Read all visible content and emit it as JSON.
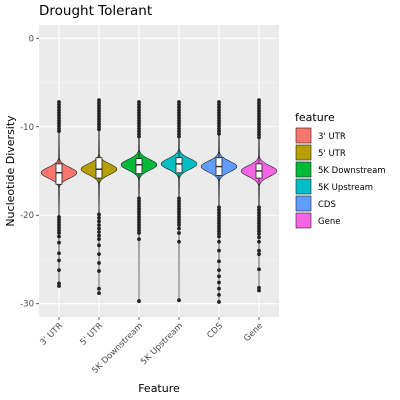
{
  "chart_data": {
    "type": "violin",
    "title": "Drought Tolerant",
    "xlabel": "Feature",
    "ylabel": "Nucleotide Diversity",
    "ylim": [
      -31.5,
      1.5
    ],
    "yticks": [
      0,
      -10,
      -20,
      -30
    ],
    "categories": [
      "3' UTR",
      "5' UTR",
      "5K Downstream",
      "5K Upstream",
      "CDS",
      "Gene"
    ],
    "legend": {
      "title": "feature",
      "position": "right"
    },
    "grid": true,
    "series": [
      {
        "name": "3' UTR",
        "color": "#F8766D",
        "max": -7.2,
        "q3": -14.2,
        "median": -15.2,
        "q1": -16.5,
        "upper_whisker": -10.8,
        "lower_whisker": -19.8,
        "min": -28.0,
        "outliers": [
          -7.2,
          -7.5,
          -7.8,
          -8.1,
          -8.4,
          -8.7,
          -9.0,
          -9.3,
          -9.6,
          -9.9,
          -10.2,
          -10.5,
          -20.2,
          -20.5,
          -20.8,
          -21.1,
          -21.4,
          -21.7,
          -22.0,
          -22.4,
          -23.1,
          -24.3,
          -25.1,
          -26.2,
          -27.7,
          -28.0
        ]
      },
      {
        "name": "5' UTR",
        "color": "#B79F00",
        "max": -7.0,
        "q3": -13.5,
        "median": -14.8,
        "q1": -15.8,
        "upper_whisker": -10.8,
        "lower_whisker": -19.5,
        "min": -28.8,
        "outliers": [
          -7.0,
          -7.3,
          -7.6,
          -7.9,
          -8.2,
          -8.5,
          -8.8,
          -9.1,
          -9.4,
          -9.7,
          -10.0,
          -10.3,
          -19.9,
          -20.3,
          -20.7,
          -21.1,
          -21.5,
          -21.9,
          -22.3,
          -22.7,
          -23.4,
          -24.4,
          -25.4,
          -26.3,
          -28.3,
          -28.8
        ]
      },
      {
        "name": "5K Downstream",
        "color": "#00BA38",
        "max": -7.2,
        "q3": -13.6,
        "median": -14.3,
        "q1": -15.3,
        "upper_whisker": -11.4,
        "lower_whisker": -17.8,
        "min": -29.7,
        "outliers": [
          -7.2,
          -7.5,
          -7.8,
          -8.1,
          -8.4,
          -8.7,
          -9.0,
          -9.3,
          -9.6,
          -9.9,
          -10.2,
          -10.5,
          -10.8,
          -11.1,
          -18.1,
          -18.4,
          -18.7,
          -19.0,
          -19.3,
          -19.6,
          -19.9,
          -20.2,
          -20.5,
          -20.8,
          -21.1,
          -21.4,
          -21.7,
          -22.0,
          -22.7,
          -29.7
        ]
      },
      {
        "name": "5K Upstream",
        "color": "#00BFC4",
        "max": -7.2,
        "q3": -13.5,
        "median": -14.2,
        "q1": -15.2,
        "upper_whisker": -11.4,
        "lower_whisker": -17.8,
        "min": -29.6,
        "outliers": [
          -7.2,
          -7.5,
          -7.8,
          -8.1,
          -8.4,
          -8.7,
          -9.0,
          -9.3,
          -9.6,
          -9.9,
          -10.2,
          -10.5,
          -10.8,
          -11.1,
          -18.1,
          -18.4,
          -18.7,
          -19.0,
          -19.3,
          -19.6,
          -19.9,
          -20.2,
          -20.5,
          -20.8,
          -21.1,
          -21.5,
          -22.0,
          -23.0,
          -29.6
        ]
      },
      {
        "name": "CDS",
        "color": "#619CFF",
        "max": -7.2,
        "q3": -13.5,
        "median": -14.5,
        "q1": -15.5,
        "upper_whisker": -11.2,
        "lower_whisker": -18.8,
        "min": -29.8,
        "outliers": [
          -7.2,
          -7.5,
          -7.8,
          -8.1,
          -8.4,
          -8.7,
          -9.0,
          -9.3,
          -9.6,
          -9.9,
          -10.2,
          -10.5,
          -10.8,
          -19.1,
          -19.4,
          -19.7,
          -20.0,
          -20.3,
          -20.6,
          -20.9,
          -21.2,
          -21.5,
          -21.8,
          -22.1,
          -22.4,
          -23.0,
          -24.0,
          -25.2,
          -26.2,
          -26.9,
          -27.6,
          -28.3,
          -29.0,
          -29.8
        ]
      },
      {
        "name": "Gene",
        "color": "#F564E3",
        "max": -7.0,
        "q3": -14.2,
        "median": -15.0,
        "q1": -15.8,
        "upper_whisker": -11.4,
        "lower_whisker": -18.8,
        "min": -28.5,
        "outliers": [
          -7.0,
          -7.3,
          -7.6,
          -7.9,
          -8.2,
          -8.5,
          -8.8,
          -9.1,
          -9.4,
          -9.7,
          -10.0,
          -10.3,
          -10.6,
          -10.9,
          -11.2,
          -19.1,
          -19.4,
          -19.7,
          -20.0,
          -20.3,
          -20.6,
          -20.9,
          -21.2,
          -21.5,
          -21.8,
          -22.1,
          -22.5,
          -23.0,
          -24.0,
          -24.4,
          -26.1,
          -28.2,
          -28.5
        ]
      }
    ]
  }
}
